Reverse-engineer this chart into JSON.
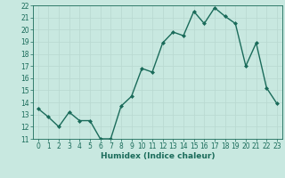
{
  "x": [
    0,
    1,
    2,
    3,
    4,
    5,
    6,
    7,
    8,
    9,
    10,
    11,
    12,
    13,
    14,
    15,
    16,
    17,
    18,
    19,
    20,
    21,
    22,
    23
  ],
  "y": [
    13.5,
    12.8,
    12.0,
    13.2,
    12.5,
    12.5,
    11.0,
    11.0,
    13.7,
    14.5,
    16.8,
    16.5,
    18.9,
    19.8,
    19.5,
    21.5,
    20.5,
    21.8,
    21.1,
    20.5,
    17.0,
    18.9,
    15.2,
    13.9
  ],
  "line_color": "#1a6b5a",
  "marker": "D",
  "marker_size": 2.0,
  "bg_color": "#c8e8e0",
  "grid_color": "#b8d8d0",
  "xlabel": "Humidex (Indice chaleur)",
  "xlim": [
    -0.5,
    23.5
  ],
  "ylim": [
    11,
    22
  ],
  "xticks": [
    0,
    1,
    2,
    3,
    4,
    5,
    6,
    7,
    8,
    9,
    10,
    11,
    12,
    13,
    14,
    15,
    16,
    17,
    18,
    19,
    20,
    21,
    22,
    23
  ],
  "yticks": [
    11,
    12,
    13,
    14,
    15,
    16,
    17,
    18,
    19,
    20,
    21,
    22
  ],
  "tick_label_size": 5.5,
  "xlabel_size": 6.5,
  "line_width": 1.0
}
